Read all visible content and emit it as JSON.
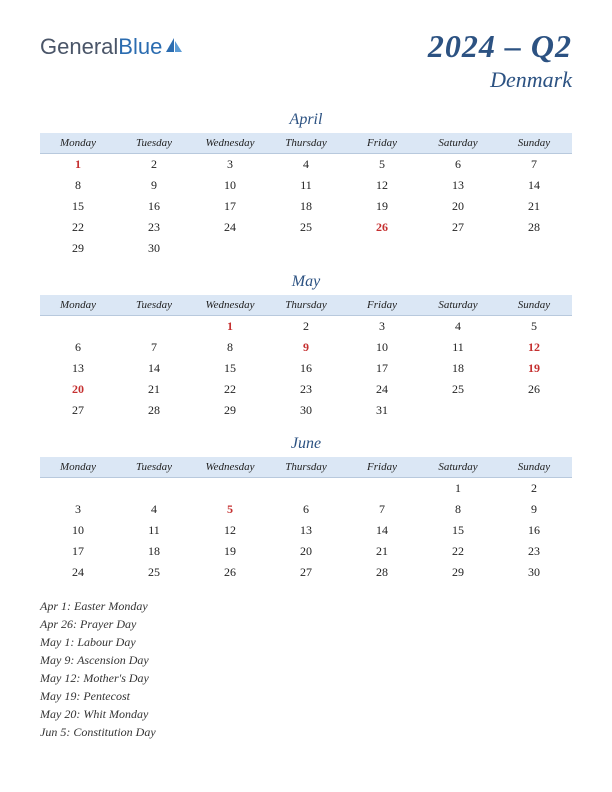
{
  "logo": {
    "part1": "General",
    "part2": "Blue"
  },
  "title": {
    "year_quarter": "2024 – Q2",
    "country": "Denmark"
  },
  "weekdays": [
    "Monday",
    "Tuesday",
    "Wednesday",
    "Thursday",
    "Friday",
    "Saturday",
    "Sunday"
  ],
  "months": [
    {
      "name": "April",
      "start_index": 0,
      "days": 30,
      "holidays": [
        1,
        26
      ]
    },
    {
      "name": "May",
      "start_index": 2,
      "days": 31,
      "holidays": [
        1,
        9,
        12,
        19,
        20
      ]
    },
    {
      "name": "June",
      "start_index": 5,
      "days": 30,
      "holidays": [
        5
      ]
    }
  ],
  "holiday_list": [
    "Apr 1: Easter Monday",
    "Apr 26: Prayer Day",
    "May 1: Labour Day",
    "May 9: Ascension Day",
    "May 12: Mother's Day",
    "May 19: Pentecost",
    "May 20: Whit Monday",
    "Jun 5: Constitution Day"
  ],
  "colors": {
    "header_bg": "#dbe7f5",
    "title_color": "#2c5282",
    "holiday_color": "#c53030",
    "logo_gray": "#4a5568",
    "logo_blue": "#2b6cb0"
  }
}
